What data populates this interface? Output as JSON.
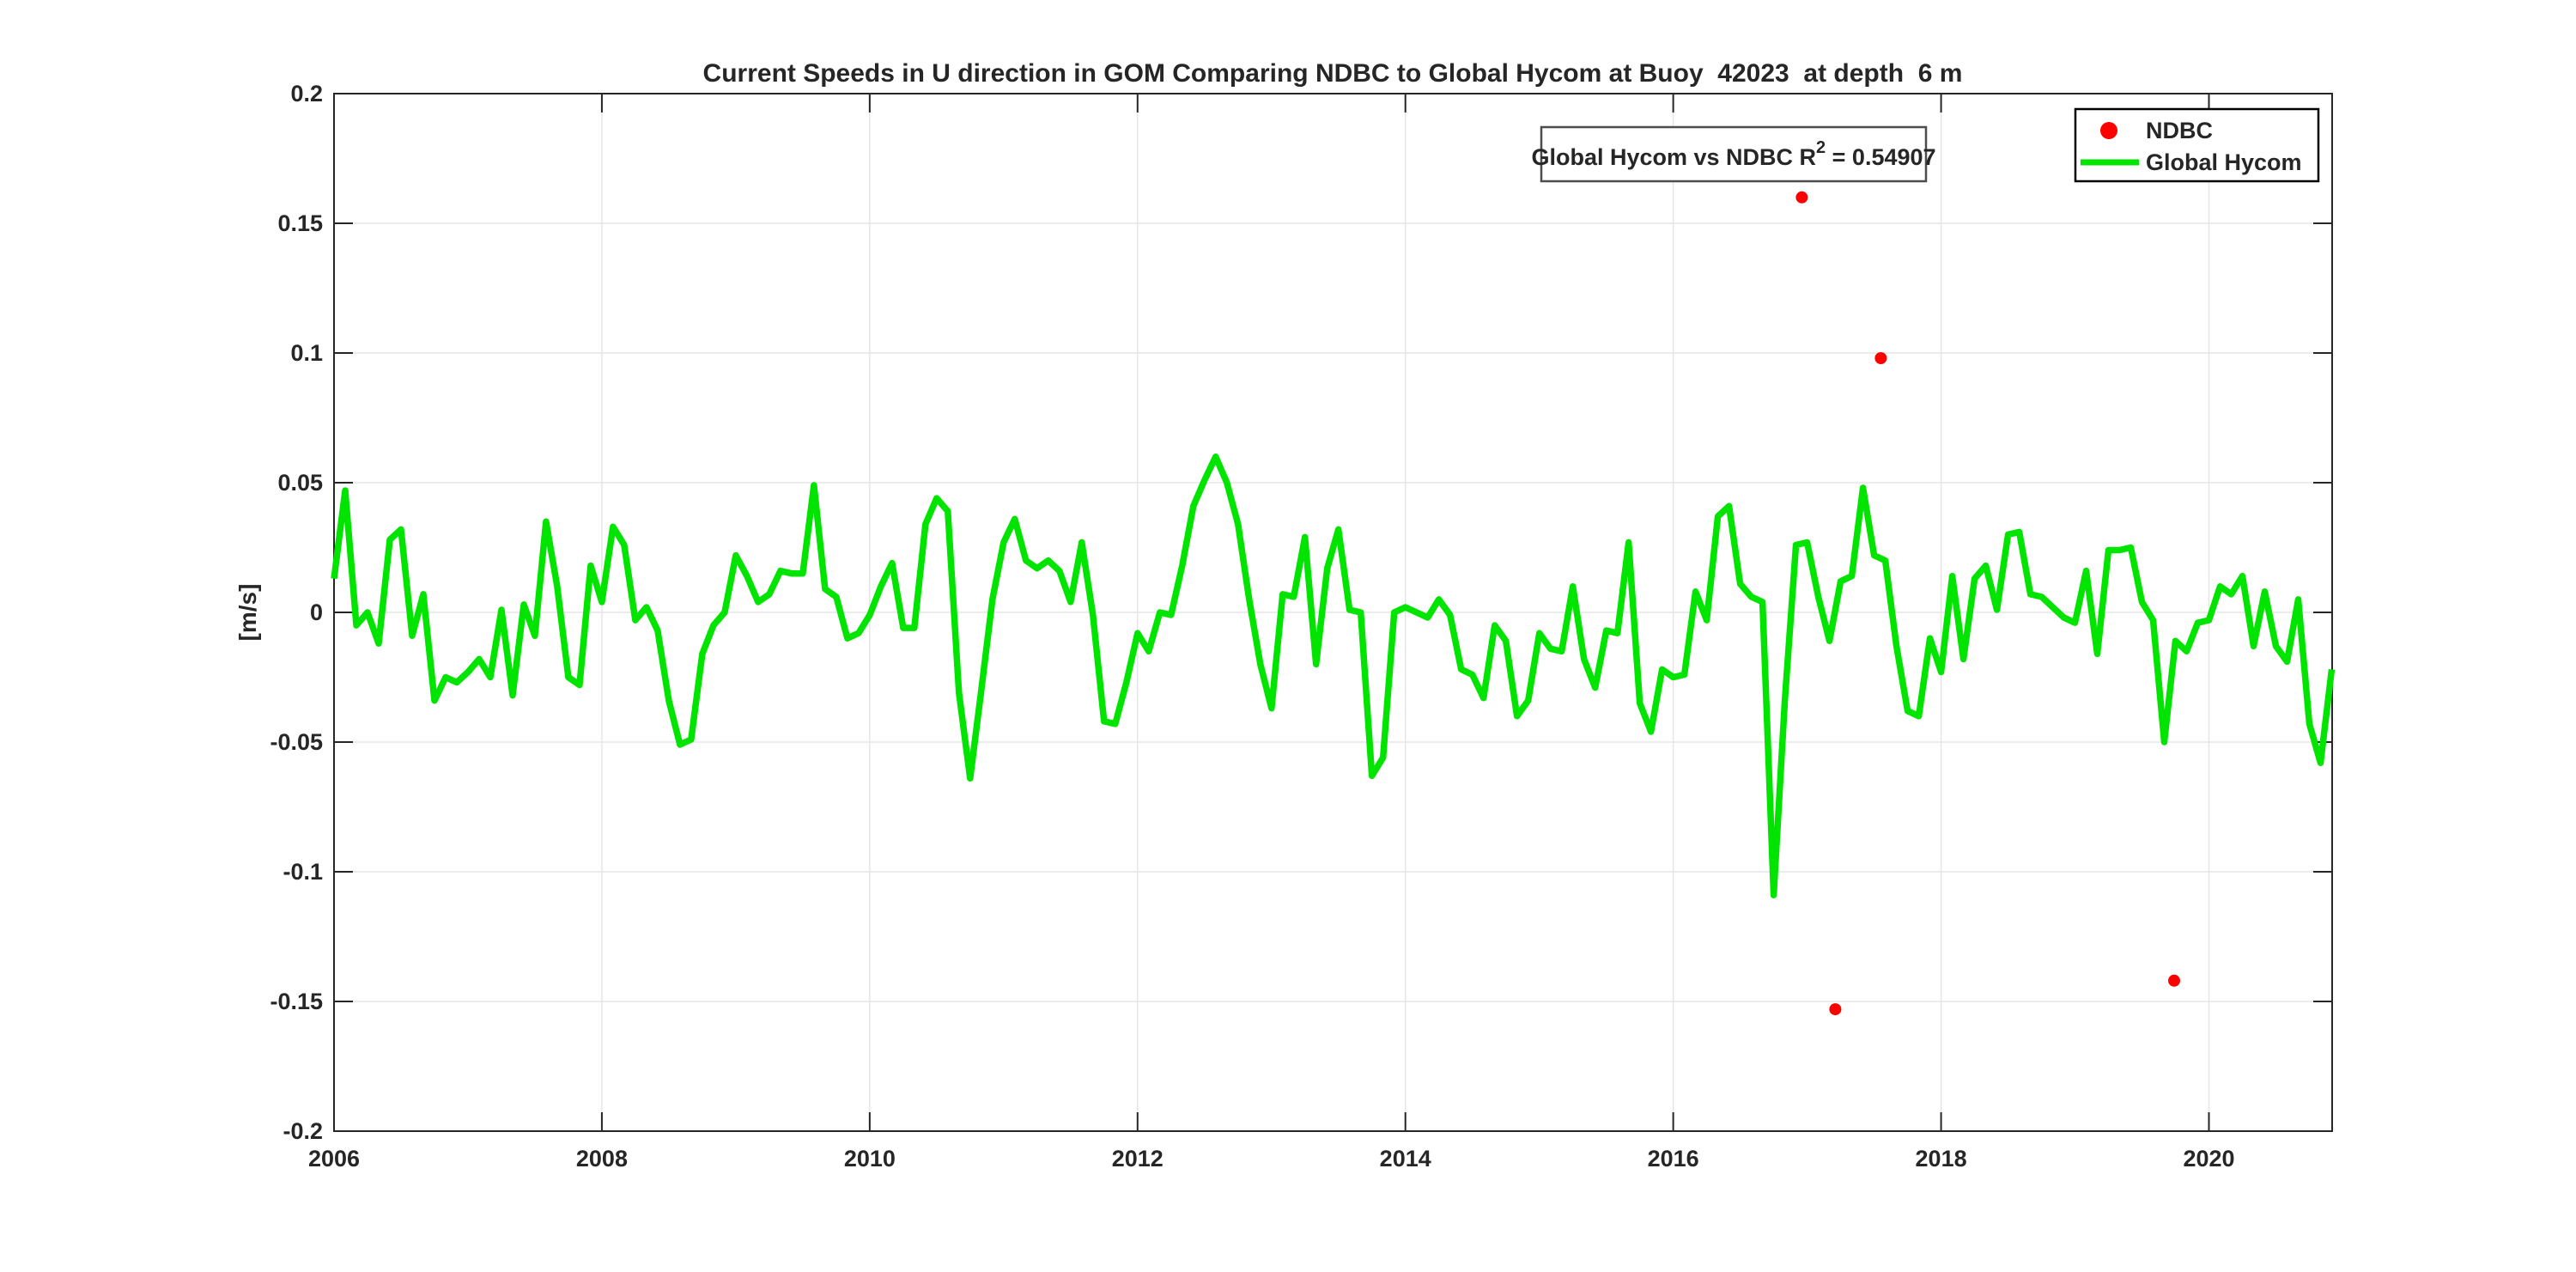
{
  "chart_data": {
    "type": "line",
    "title": "Current Speeds in U direction in GOM Comparing NDBC to Global Hycom at Buoy  42023  at depth  6 m",
    "xlabel": "",
    "ylabel": "[m/s]",
    "xlim": [
      2006,
      2020.92
    ],
    "ylim": [
      -0.2,
      0.2
    ],
    "xticks": [
      2006,
      2008,
      2010,
      2012,
      2014,
      2016,
      2018,
      2020
    ],
    "yticks": [
      -0.2,
      -0.15,
      -0.1,
      -0.05,
      0,
      0.05,
      0.1,
      0.15,
      0.2
    ],
    "grid": true,
    "frame_color": "#262626",
    "grid_color": "#e6e6e6",
    "annotation": {
      "full_text": "Global Hycom vs NDBC R^2 = 0.54907",
      "text_before_sup": "Global Hycom vs NDBC R",
      "sup": "2",
      "text_after_sup": " = 0.54907"
    },
    "legend": {
      "position": "top-right",
      "entries": [
        {
          "label": "NDBC",
          "marker": "dot",
          "color": "#ff0000"
        },
        {
          "label": "Global Hycom",
          "marker": "line",
          "color": "#00e400"
        }
      ]
    },
    "series": [
      {
        "name": "NDBC",
        "type": "scatter",
        "color": "#ff0000",
        "points": [
          [
            2016.96,
            0.16
          ],
          [
            2017.21,
            -0.153
          ],
          [
            2017.55,
            0.098
          ],
          [
            2019.74,
            -0.142
          ]
        ]
      },
      {
        "name": "Global Hycom",
        "type": "line",
        "color": "#00e400",
        "x_start": 2006.0,
        "x_step_years": 0.0833333,
        "values": [
          0.013,
          0.047,
          -0.005,
          0.0,
          -0.012,
          0.028,
          0.032,
          -0.009,
          0.007,
          -0.034,
          -0.025,
          -0.027,
          -0.023,
          -0.018,
          -0.025,
          0.001,
          -0.032,
          0.003,
          -0.009,
          0.035,
          0.01,
          -0.025,
          -0.028,
          0.018,
          0.004,
          0.033,
          0.026,
          -0.003,
          0.002,
          -0.007,
          -0.034,
          -0.051,
          -0.049,
          -0.016,
          -0.005,
          0.0,
          0.022,
          0.014,
          0.004,
          0.007,
          0.016,
          0.015,
          0.015,
          0.049,
          0.009,
          0.006,
          -0.01,
          -0.008,
          -0.001,
          0.01,
          0.019,
          -0.006,
          -0.006,
          0.034,
          0.044,
          0.039,
          -0.031,
          -0.064,
          -0.03,
          0.005,
          0.027,
          0.036,
          0.02,
          0.017,
          0.02,
          0.016,
          0.004,
          0.027,
          -0.001,
          -0.042,
          -0.043,
          -0.027,
          -0.008,
          -0.015,
          0.0,
          -0.001,
          0.018,
          0.041,
          0.051,
          0.06,
          0.05,
          0.034,
          0.005,
          -0.02,
          -0.037,
          0.007,
          0.006,
          0.029,
          -0.02,
          0.017,
          0.032,
          0.001,
          0.0,
          -0.063,
          -0.056,
          0.0,
          0.002,
          0.0,
          -0.002,
          0.005,
          -0.001,
          -0.022,
          -0.024,
          -0.033,
          -0.005,
          -0.011,
          -0.04,
          -0.034,
          -0.008,
          -0.014,
          -0.015,
          0.01,
          -0.018,
          -0.029,
          -0.007,
          -0.008,
          0.027,
          -0.035,
          -0.046,
          -0.022,
          -0.025,
          -0.024,
          0.008,
          -0.003,
          0.037,
          0.041,
          0.011,
          0.006,
          0.004,
          -0.109,
          -0.034,
          0.026,
          0.027,
          0.006,
          -0.011,
          0.012,
          0.014,
          0.048,
          0.022,
          0.02,
          -0.013,
          -0.038,
          -0.04,
          -0.01,
          -0.023,
          0.014,
          -0.018,
          0.013,
          0.018,
          0.001,
          0.03,
          0.031,
          0.007,
          0.006,
          0.002,
          -0.002,
          -0.004,
          0.016,
          -0.016,
          0.024,
          0.024,
          0.025,
          0.004,
          -0.003,
          -0.05,
          -0.011,
          -0.015,
          -0.004,
          -0.003,
          0.01,
          0.007,
          0.014,
          -0.013,
          0.008,
          -0.013,
          -0.019,
          0.005,
          -0.043,
          -0.058,
          -0.022
        ]
      }
    ]
  }
}
